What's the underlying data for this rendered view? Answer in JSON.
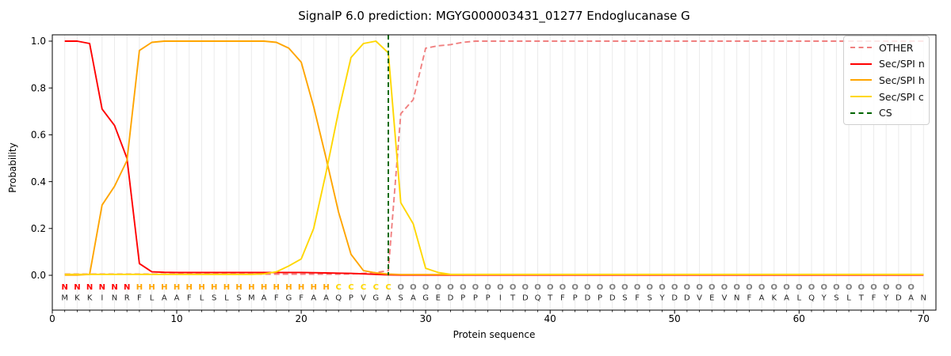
{
  "title": "SignalP 6.0 prediction: MGYG000003431_01277 Endoglucanase G",
  "chart_data": {
    "type": "line",
    "title": "SignalP 6.0 prediction: MGYG000003431_01277 Endoglucanase G",
    "xlabel": "Protein sequence",
    "ylabel": "Probability",
    "xlim": [
      0,
      71
    ],
    "ylim": [
      -0.15,
      1.03
    ],
    "x_ticks": [
      0,
      10,
      20,
      30,
      40,
      50,
      60,
      70
    ],
    "x_tick_labels": [
      "0",
      "10",
      "20",
      "30",
      "40",
      "50",
      "60",
      "70"
    ],
    "y_ticks": [
      0,
      0.2,
      0.4,
      0.6,
      0.8,
      1.0
    ],
    "y_tick_labels": [
      "0.0",
      "0.2",
      "0.4",
      "0.6",
      "0.8",
      "1.0"
    ],
    "grid": {
      "vertical_per_position": true,
      "color": "#ebebeb"
    },
    "x_start": 1,
    "series": [
      {
        "name": "OTHER",
        "color": "#f08080",
        "dashed": true,
        "values": [
          0.005,
          0.005,
          0.005,
          0.005,
          0.005,
          0.005,
          0.005,
          0.005,
          0.005,
          0.005,
          0.005,
          0.005,
          0.005,
          0.005,
          0.005,
          0.005,
          0.005,
          0.005,
          0.005,
          0.005,
          0.005,
          0.005,
          0.005,
          0.006,
          0.008,
          0.012,
          0.02,
          0.69,
          0.75,
          0.97,
          0.98,
          0.985,
          0.995,
          1.0,
          1.0,
          1.0,
          1.0,
          1.0,
          1.0,
          1.0,
          1.0,
          1.0,
          1.0,
          1.0,
          1.0,
          1.0,
          1.0,
          1.0,
          1.0,
          1.0,
          1.0,
          1.0,
          1.0,
          1.0,
          1.0,
          1.0,
          1.0,
          1.0,
          1.0,
          1.0,
          1.0,
          1.0,
          1.0,
          1.0,
          1.0,
          1.0,
          1.0,
          1.0,
          1.0,
          1.0
        ]
      },
      {
        "name": "Sec/SPI n",
        "color": "#ff0000",
        "dashed": false,
        "values": [
          1.0,
          1.0,
          0.99,
          0.71,
          0.64,
          0.5,
          0.05,
          0.015,
          0.013,
          0.012,
          0.012,
          0.012,
          0.012,
          0.012,
          0.012,
          0.012,
          0.012,
          0.012,
          0.012,
          0.012,
          0.011,
          0.01,
          0.009,
          0.008,
          0.006,
          0.004,
          0.002,
          0.001,
          0.001,
          0.001,
          0.001,
          0.001,
          0.001,
          0.001,
          0.001,
          0.001,
          0.001,
          0.001,
          0.001,
          0.001,
          0.001,
          0.001,
          0.001,
          0.001,
          0.001,
          0.001,
          0.001,
          0.001,
          0.001,
          0.001,
          0.001,
          0.001,
          0.001,
          0.001,
          0.001,
          0.001,
          0.001,
          0.001,
          0.001,
          0.001,
          0.001,
          0.001,
          0.001,
          0.001,
          0.001,
          0.001,
          0.001,
          0.001,
          0.001,
          0.001
        ]
      },
      {
        "name": "Sec/SPI h",
        "color": "#ffa500",
        "dashed": false,
        "values": [
          0.001,
          0.001,
          0.004,
          0.3,
          0.38,
          0.49,
          0.96,
          0.995,
          1.0,
          1.0,
          1.0,
          1.0,
          1.0,
          1.0,
          1.0,
          1.0,
          1.0,
          0.995,
          0.97,
          0.91,
          0.72,
          0.5,
          0.27,
          0.09,
          0.02,
          0.01,
          0.005,
          0.003,
          0.003,
          0.003,
          0.003,
          0.003,
          0.003,
          0.003,
          0.003,
          0.003,
          0.003,
          0.003,
          0.003,
          0.003,
          0.003,
          0.003,
          0.003,
          0.003,
          0.003,
          0.003,
          0.003,
          0.003,
          0.003,
          0.003,
          0.003,
          0.003,
          0.003,
          0.003,
          0.003,
          0.003,
          0.003,
          0.003,
          0.003,
          0.003,
          0.003,
          0.003,
          0.003,
          0.003,
          0.003,
          0.003,
          0.003,
          0.003,
          0.003,
          0.003
        ]
      },
      {
        "name": "Sec/SPI c",
        "color": "#ffd700",
        "dashed": false,
        "values": [
          0.004,
          0.004,
          0.004,
          0.004,
          0.004,
          0.004,
          0.004,
          0.004,
          0.004,
          0.004,
          0.004,
          0.004,
          0.004,
          0.004,
          0.004,
          0.004,
          0.006,
          0.015,
          0.04,
          0.07,
          0.2,
          0.44,
          0.7,
          0.93,
          0.99,
          1.0,
          0.95,
          0.31,
          0.22,
          0.03,
          0.012,
          0.004,
          0.004,
          0.004,
          0.004,
          0.004,
          0.004,
          0.004,
          0.004,
          0.004,
          0.004,
          0.004,
          0.004,
          0.004,
          0.004,
          0.004,
          0.004,
          0.004,
          0.004,
          0.004,
          0.004,
          0.004,
          0.004,
          0.004,
          0.004,
          0.004,
          0.004,
          0.004,
          0.004,
          0.004,
          0.004,
          0.004,
          0.004,
          0.004,
          0.004,
          0.004,
          0.004,
          0.004,
          0.004,
          0.004
        ]
      }
    ],
    "cs_marker": {
      "label": "CS",
      "position": 27,
      "color": "#006400",
      "dashed": true
    },
    "legend": {
      "position": "upper right",
      "items": [
        {
          "label": "OTHER",
          "color": "#f08080",
          "dashed": true
        },
        {
          "label": "Sec/SPI n",
          "color": "#ff0000",
          "dashed": false
        },
        {
          "label": "Sec/SPI h",
          "color": "#ffa500",
          "dashed": false
        },
        {
          "label": "Sec/SPI c",
          "color": "#ffd700",
          "dashed": false
        },
        {
          "label": "CS",
          "color": "#006400",
          "dashed": true
        }
      ]
    }
  },
  "sequence": {
    "residues": "MKKINRFLAAFLSLSMAFGFAAQPVGASAGEDPPPITDQTFPDPDSFSYDDVEVNFAKALQYSLTFYDAN",
    "regions": "NNNNNNHHHHHHHHHHHHHHHHCCCCCOOOOOOOOOOOOOOOOOOOOOOOOOOOOOOOOOOOOOOOOOO",
    "region_colors": {
      "N": "#ff0000",
      "H": "#ffa500",
      "C": "#ffd700",
      "O": "#7f7f7f"
    },
    "residue_color": "#262626"
  }
}
